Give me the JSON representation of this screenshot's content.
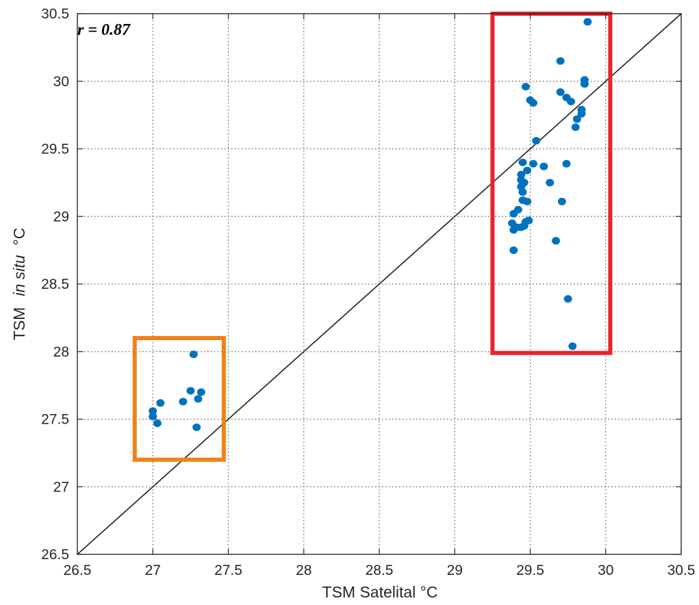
{
  "chart_data": {
    "type": "scatter",
    "title": "",
    "xlabel": "TSM Satelital °C",
    "ylabel_parts": [
      "TSM",
      "in situ",
      "°C"
    ],
    "xlim": [
      26.5,
      30.5
    ],
    "ylim": [
      26.5,
      30.5
    ],
    "x_ticks": [
      "26.5",
      "27",
      "27.5",
      "28",
      "28.5",
      "29",
      "29.5",
      "30",
      "30.5"
    ],
    "y_ticks": [
      "26.5",
      "27",
      "27.5",
      "28",
      "28.5",
      "29",
      "29.5",
      "30",
      "30.5"
    ],
    "grid": true,
    "annotation": "r = 0.87",
    "reference_line": {
      "type": "identity",
      "from": [
        26.5,
        26.5
      ],
      "to": [
        30.5,
        30.5
      ]
    },
    "highlight_boxes": [
      {
        "color": "#f57f17",
        "x": [
          26.88,
          27.47
        ],
        "y": [
          27.2,
          28.1
        ]
      },
      {
        "color": "#e8232d",
        "x": [
          29.25,
          30.03
        ],
        "y": [
          27.99,
          30.5
        ]
      }
    ],
    "marker_color": "#0072bd",
    "series": [
      {
        "points": [
          [
            27.27,
            27.98
          ],
          [
            27.25,
            27.71
          ],
          [
            27.32,
            27.7
          ],
          [
            27.3,
            27.65
          ],
          [
            27.2,
            27.63
          ],
          [
            27.05,
            27.62
          ],
          [
            27.0,
            27.56
          ],
          [
            27.0,
            27.52
          ],
          [
            27.03,
            27.47
          ],
          [
            27.29,
            27.44
          ],
          [
            29.88,
            30.44
          ],
          [
            29.7,
            30.15
          ],
          [
            29.86,
            30.01
          ],
          [
            29.86,
            29.98
          ],
          [
            29.47,
            29.96
          ],
          [
            29.7,
            29.92
          ],
          [
            29.74,
            29.88
          ],
          [
            29.77,
            29.85
          ],
          [
            29.5,
            29.86
          ],
          [
            29.52,
            29.84
          ],
          [
            29.84,
            29.79
          ],
          [
            29.84,
            29.76
          ],
          [
            29.81,
            29.72
          ],
          [
            29.8,
            29.66
          ],
          [
            29.54,
            29.56
          ],
          [
            29.45,
            29.4
          ],
          [
            29.74,
            29.39
          ],
          [
            29.52,
            29.39
          ],
          [
            29.59,
            29.37
          ],
          [
            29.48,
            29.34
          ],
          [
            29.44,
            29.31
          ],
          [
            29.44,
            29.27
          ],
          [
            29.46,
            29.25
          ],
          [
            29.63,
            29.25
          ],
          [
            29.44,
            29.22
          ],
          [
            29.45,
            29.18
          ],
          [
            29.45,
            29.12
          ],
          [
            29.48,
            29.11
          ],
          [
            29.71,
            29.11
          ],
          [
            29.42,
            29.05
          ],
          [
            29.39,
            29.02
          ],
          [
            29.49,
            28.97
          ],
          [
            29.47,
            28.96
          ],
          [
            29.38,
            28.95
          ],
          [
            29.46,
            28.93
          ],
          [
            29.44,
            28.92
          ],
          [
            29.41,
            28.92
          ],
          [
            29.39,
            28.9
          ],
          [
            29.67,
            28.82
          ],
          [
            29.39,
            28.75
          ],
          [
            29.75,
            28.39
          ],
          [
            29.78,
            28.04
          ]
        ]
      }
    ]
  }
}
